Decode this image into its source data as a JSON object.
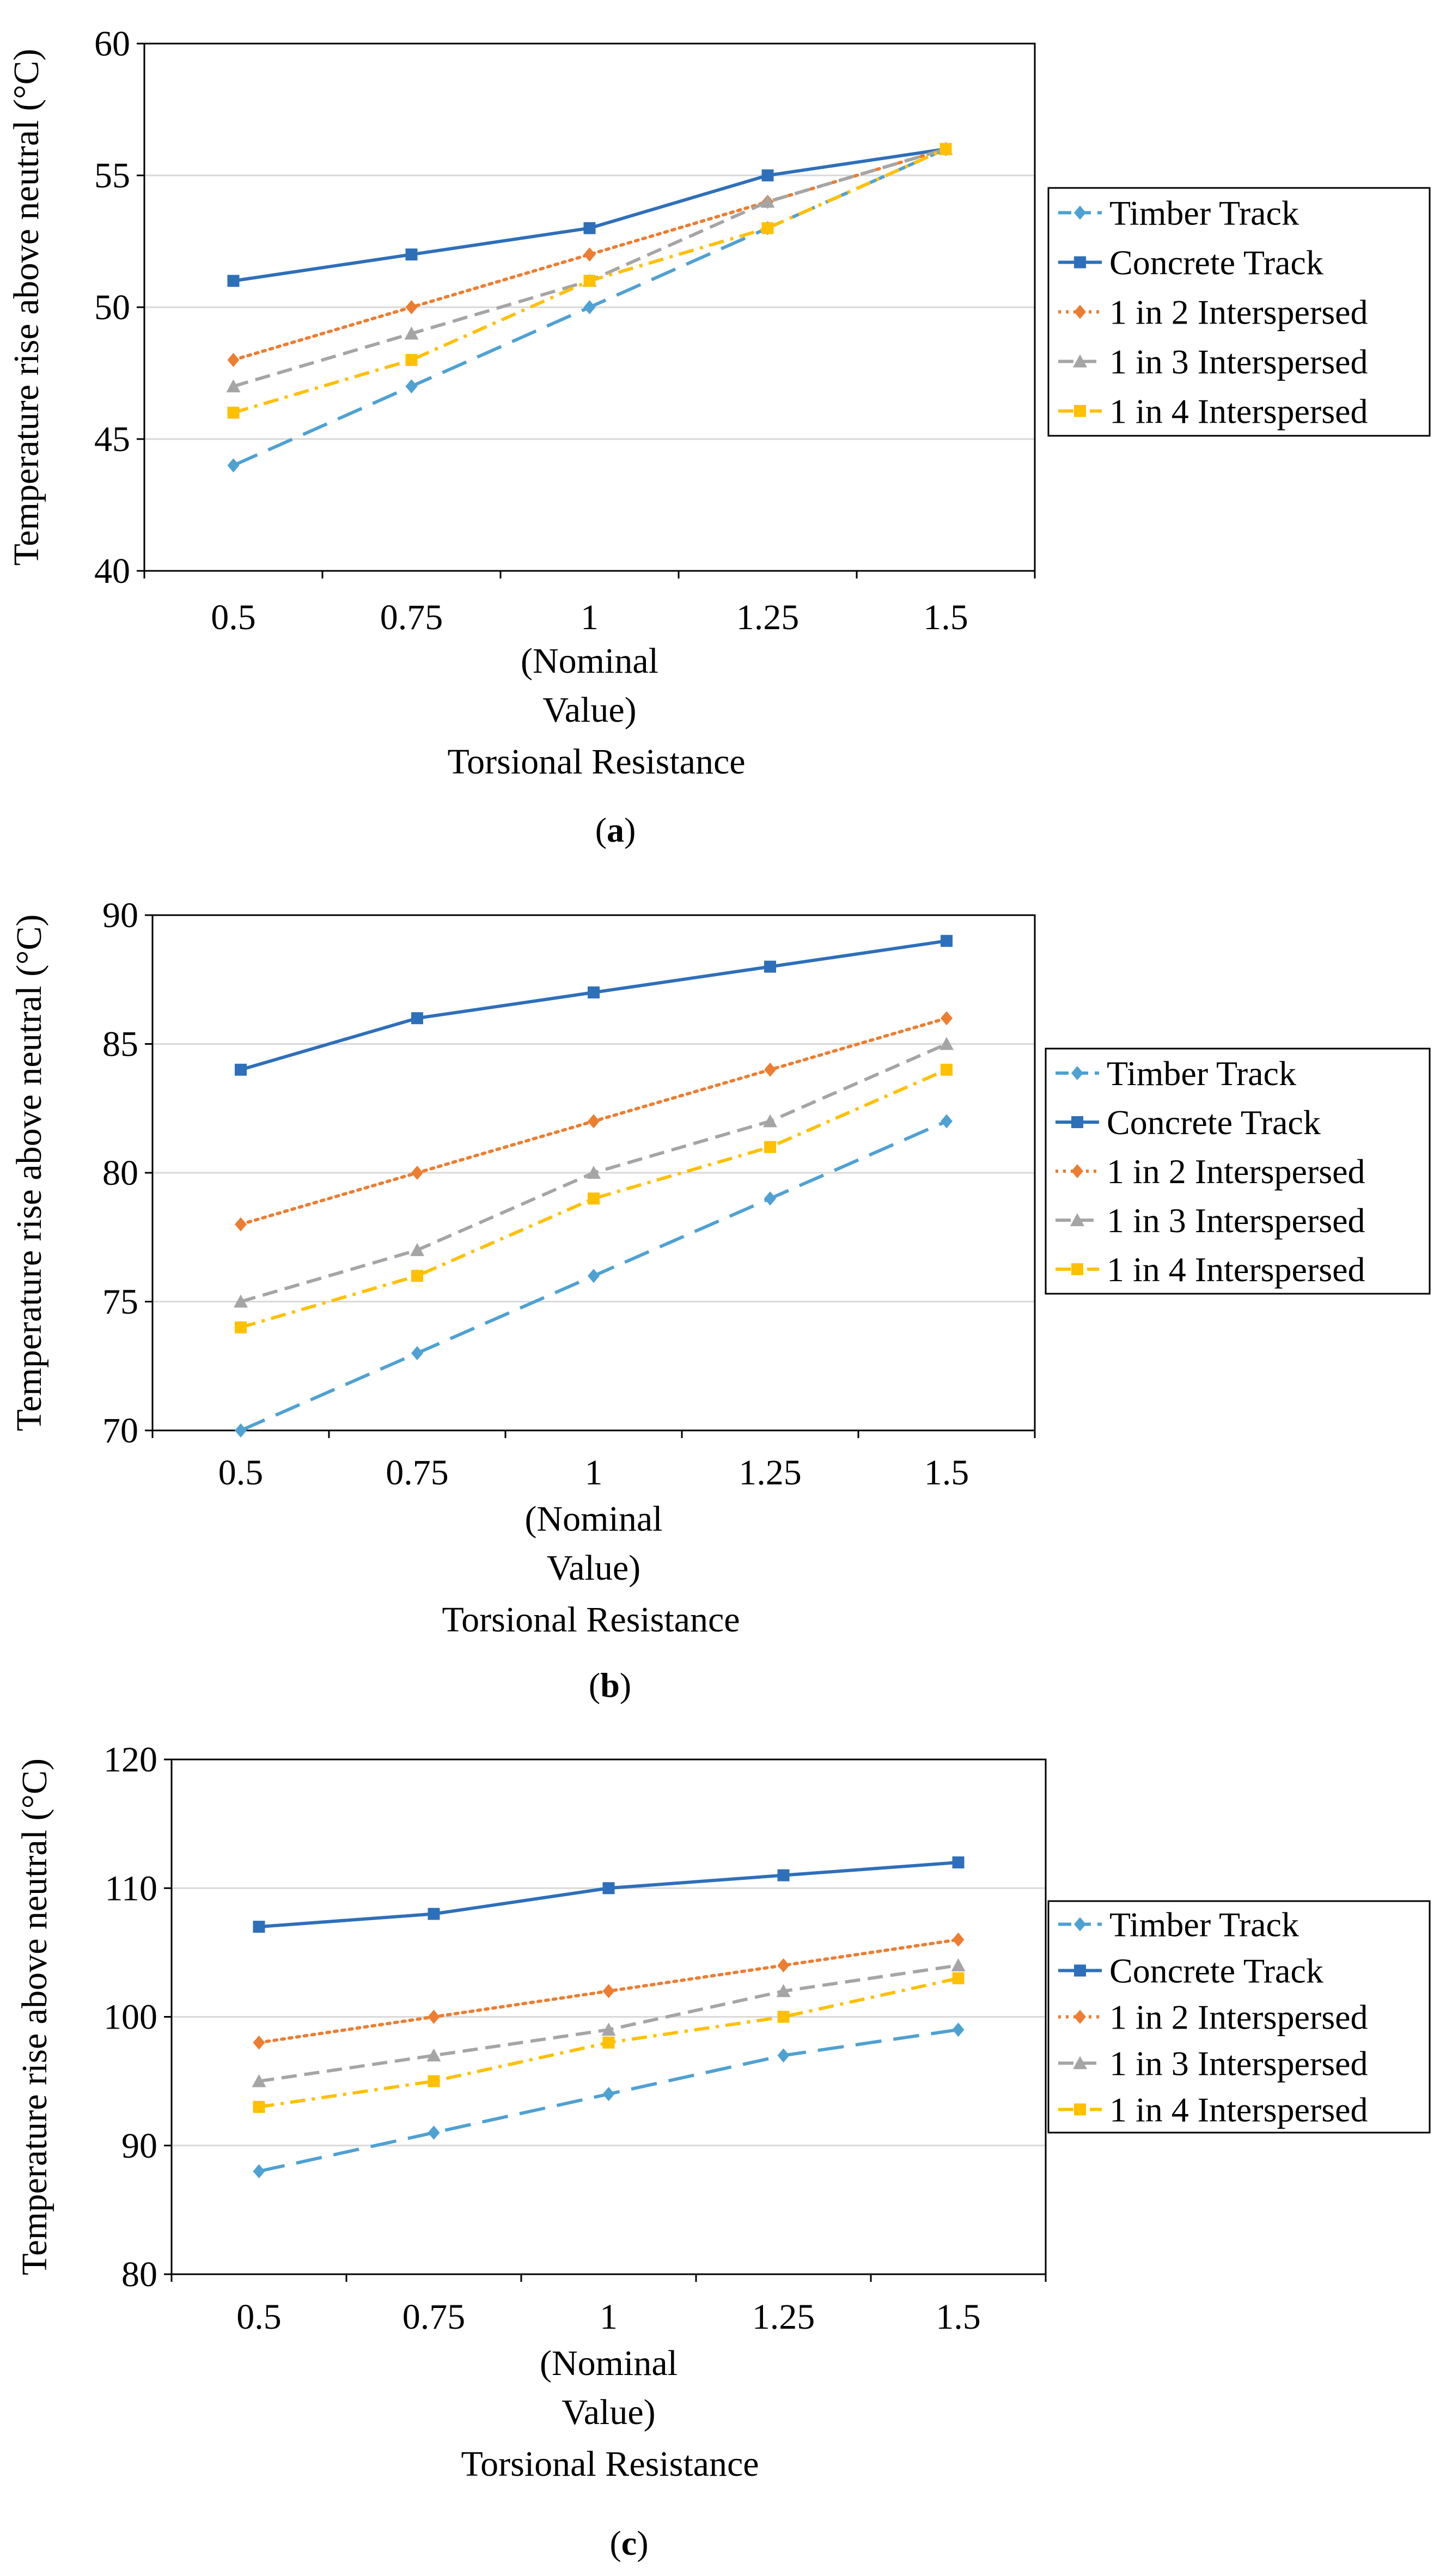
{
  "chart_data": [
    {
      "type": "line",
      "caption_letter": "a",
      "categories": [
        "0.5",
        "0.75",
        "1",
        "1.25",
        "1.5"
      ],
      "x_tick_sub": [
        "(Nominal",
        "Value)"
      ],
      "xlabel": "Torsional Resistance",
      "ylabel": "Temperature rise above neutral (°C)",
      "ylim": [
        40,
        60
      ],
      "yticks": [
        "40",
        "45",
        "50",
        "55",
        "60"
      ],
      "grid": true,
      "legend_position": "right",
      "series": [
        {
          "name": "Timber Track",
          "values": [
            44,
            47,
            50,
            53,
            56
          ],
          "color": "#4ea1d3",
          "dash": "48,22",
          "marker": "diamond"
        },
        {
          "name": "Concrete Track",
          "values": [
            51,
            52,
            53,
            55,
            56
          ],
          "color": "#2e6fba",
          "dash": "",
          "marker": "square"
        },
        {
          "name": "1 in 2 Interspersed",
          "values": [
            48,
            50,
            52,
            54,
            56
          ],
          "color": "#ed7d31",
          "dash": "5,9",
          "marker": "diamond"
        },
        {
          "name": "1 in 3 Interspersed",
          "values": [
            47,
            49,
            51,
            54,
            56
          ],
          "color": "#a5a5a5",
          "dash": "28,14",
          "marker": "triangle"
        },
        {
          "name": "1 in 4 Interspersed",
          "values": [
            46,
            48,
            51,
            53,
            56
          ],
          "color": "#ffc000",
          "dash": "28,12,6,12",
          "marker": "square"
        }
      ]
    },
    {
      "type": "line",
      "caption_letter": "b",
      "categories": [
        "0.5",
        "0.75",
        "1",
        "1.25",
        "1.5"
      ],
      "x_tick_sub": [
        "(Nominal",
        "Value)"
      ],
      "xlabel": "Torsional Resistance",
      "ylabel": "Temperature rise above neutral (°C)",
      "ylim": [
        70,
        90
      ],
      "yticks": [
        "70",
        "75",
        "80",
        "85",
        "90"
      ],
      "grid": true,
      "legend_position": "right",
      "series": [
        {
          "name": "Timber Track",
          "values": [
            70,
            73,
            76,
            79,
            82
          ],
          "color": "#4ea1d3",
          "dash": "48,22",
          "marker": "diamond"
        },
        {
          "name": "Concrete Track",
          "values": [
            84,
            86,
            87,
            88,
            89
          ],
          "color": "#2e6fba",
          "dash": "",
          "marker": "square"
        },
        {
          "name": "1 in 2 Interspersed",
          "values": [
            78,
            80,
            82,
            84,
            86
          ],
          "color": "#ed7d31",
          "dash": "5,9",
          "marker": "diamond"
        },
        {
          "name": "1 in 3 Interspersed",
          "values": [
            75,
            77,
            80,
            82,
            85
          ],
          "color": "#a5a5a5",
          "dash": "28,14",
          "marker": "triangle"
        },
        {
          "name": "1 in 4 Interspersed",
          "values": [
            74,
            76,
            79,
            81,
            84
          ],
          "color": "#ffc000",
          "dash": "28,12,6,12",
          "marker": "square"
        }
      ]
    },
    {
      "type": "line",
      "caption_letter": "c",
      "categories": [
        "0.5",
        "0.75",
        "1",
        "1.25",
        "1.5"
      ],
      "x_tick_sub": [
        "(Nominal",
        "Value)"
      ],
      "xlabel": "Torsional Resistance",
      "ylabel": "Temperature rise above neutral (°C)",
      "ylim": [
        80,
        120
      ],
      "yticks": [
        "80",
        "90",
        "100",
        "110",
        "120"
      ],
      "grid": true,
      "legend_position": "right",
      "series": [
        {
          "name": "Timber Track",
          "values": [
            88,
            91,
            94,
            97,
            99
          ],
          "color": "#4ea1d3",
          "dash": "48,22",
          "marker": "diamond"
        },
        {
          "name": "Concrete Track",
          "values": [
            107,
            108,
            110,
            111,
            112
          ],
          "color": "#2e6fba",
          "dash": "",
          "marker": "square"
        },
        {
          "name": "1 in 2 Interspersed",
          "values": [
            98,
            100,
            102,
            104,
            106
          ],
          "color": "#ed7d31",
          "dash": "5,9",
          "marker": "diamond"
        },
        {
          "name": "1 in 3 Interspersed",
          "values": [
            95,
            97,
            99,
            102,
            104
          ],
          "color": "#a5a5a5",
          "dash": "28,14",
          "marker": "triangle"
        },
        {
          "name": "1 in 4 Interspersed",
          "values": [
            93,
            95,
            98,
            100,
            103
          ],
          "color": "#ffc000",
          "dash": "28,12,6,12",
          "marker": "square"
        }
      ]
    }
  ]
}
